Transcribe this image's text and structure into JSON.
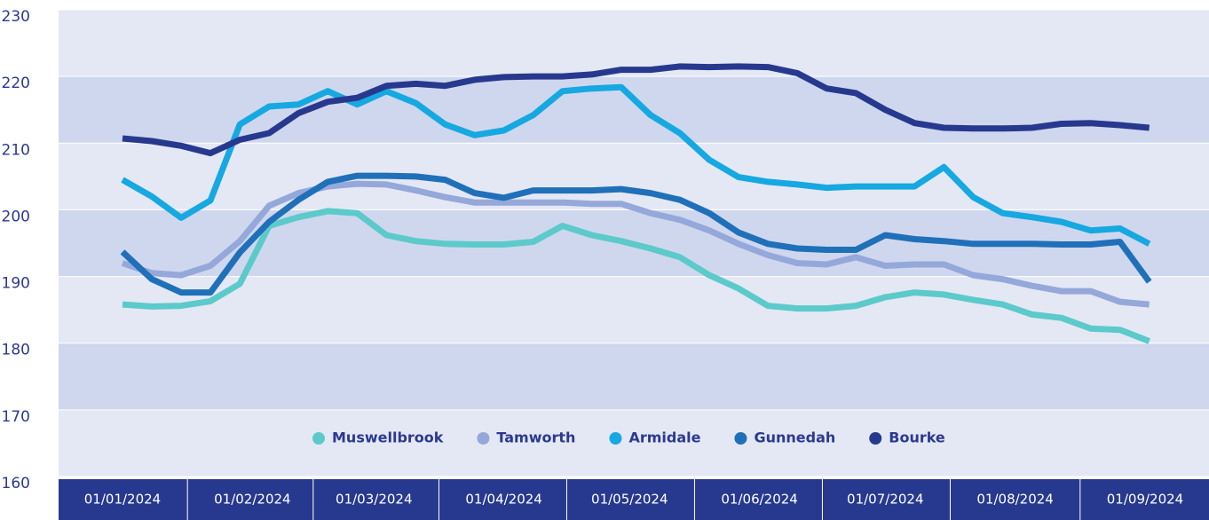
{
  "chart_data": {
    "type": "line",
    "x": [
      "01/01/2024",
      "08/01/2024",
      "15/01/2024",
      "22/01/2024",
      "29/01/2024",
      "05/02/2024",
      "12/02/2024",
      "19/02/2024",
      "26/02/2024",
      "04/03/2024",
      "11/03/2024",
      "18/03/2024",
      "25/03/2024",
      "01/04/2024",
      "08/04/2024",
      "15/04/2024",
      "22/04/2024",
      "29/04/2024",
      "06/05/2024",
      "13/05/2024",
      "20/05/2024",
      "27/05/2024",
      "03/06/2024",
      "10/06/2024",
      "17/06/2024",
      "24/06/2024",
      "01/07/2024",
      "08/07/2024",
      "15/07/2024",
      "22/07/2024",
      "29/07/2024",
      "05/08/2024",
      "12/08/2024",
      "19/08/2024",
      "26/08/2024",
      "02/09/2024"
    ],
    "xticks": [
      "01/01/2024",
      "01/02/2024",
      "01/03/2024",
      "01/04/2024",
      "01/05/2024",
      "01/06/2024",
      "01/07/2024",
      "01/08/2024",
      "01/09/2024"
    ],
    "ylim": [
      160,
      230
    ],
    "yticks": [
      160,
      170,
      180,
      190,
      200,
      210,
      220,
      230
    ],
    "series": [
      {
        "name": "Muswellbrook",
        "color": "#5ccaca",
        "values": [
          185.8,
          185.5,
          185.6,
          186.3,
          188.9,
          197.6,
          198.9,
          199.8,
          199.5,
          196.2,
          195.3,
          194.9,
          194.8,
          194.8,
          195.2,
          197.6,
          196.2,
          195.3,
          194.2,
          192.9,
          190.2,
          188.2,
          185.6,
          185.2,
          185.2,
          185.6,
          186.9,
          187.6,
          187.3,
          186.5,
          185.8,
          184.3,
          183.8,
          182.2,
          182,
          180.3
        ]
      },
      {
        "name": "Tamworth",
        "color": "#95a8da",
        "values": [
          192,
          190.5,
          190.2,
          191.6,
          195.3,
          200.6,
          202.5,
          203.5,
          203.9,
          203.8,
          202.9,
          201.9,
          201.1,
          201.1,
          201.1,
          201.1,
          200.9,
          200.9,
          199.5,
          198.5,
          196.9,
          194.9,
          193.2,
          192,
          191.8,
          192.9,
          191.6,
          191.8,
          191.8,
          190.2,
          189.6,
          188.6,
          187.8,
          187.8,
          186.2,
          185.8
        ]
      },
      {
        "name": "Armidale",
        "color": "#16a8e1",
        "values": [
          204.5,
          202,
          198.8,
          201.4,
          212.8,
          215.5,
          215.8,
          217.8,
          215.8,
          217.8,
          216,
          212.8,
          211.2,
          211.9,
          214.2,
          217.8,
          218.2,
          218.4,
          214.2,
          211.5,
          207.5,
          204.9,
          204.2,
          203.8,
          203.3,
          203.5,
          203.5,
          203.5,
          206.4,
          201.9,
          199.5,
          198.9,
          198.2,
          196.9,
          197.2,
          194.9
        ]
      },
      {
        "name": "Gunnedah",
        "color": "#1f70b9",
        "values": [
          193.7,
          189.6,
          187.6,
          187.6,
          193.6,
          198.2,
          201.5,
          204.2,
          205.1,
          205.1,
          205,
          204.5,
          202.5,
          201.8,
          202.9,
          202.9,
          202.9,
          203.1,
          202.5,
          201.5,
          199.5,
          196.6,
          194.9,
          194.2,
          194,
          194,
          196.2,
          195.6,
          195.3,
          194.9,
          194.9,
          194.9,
          194.8,
          194.8,
          195.2,
          189.2
        ]
      },
      {
        "name": "Bourke",
        "color": "#27398e",
        "values": [
          210.7,
          210.3,
          209.6,
          208.5,
          210.5,
          211.5,
          214.5,
          216.2,
          216.8,
          218.6,
          218.9,
          218.6,
          219.5,
          219.9,
          220,
          220,
          220.3,
          221,
          221,
          221.5,
          221.4,
          221.5,
          221.4,
          220.5,
          218.2,
          217.5,
          215,
          213,
          212.3,
          212.2,
          212.2,
          212.3,
          212.9,
          213,
          212.7,
          212.3
        ]
      }
    ],
    "band_colors": [
      "#e4e8f4",
      "#cfd7ee"
    ],
    "axis_color": "#27398e"
  }
}
